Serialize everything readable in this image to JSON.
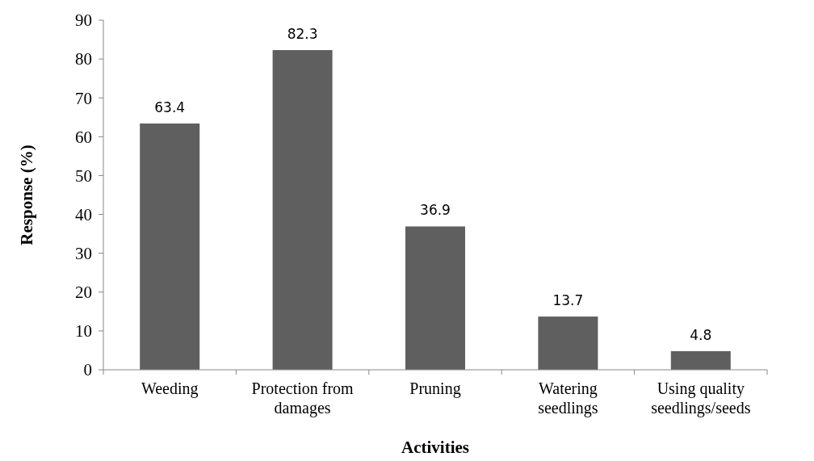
{
  "chart_data": {
    "type": "bar",
    "xlabel": "Activities",
    "ylabel": "Response (%)",
    "categories": [
      "Weeding",
      "Protection from damages",
      "Pruning",
      "Watering seedlings",
      "Using quality seedlings/seeds"
    ],
    "values": [
      63.4,
      82.3,
      36.9,
      13.7,
      4.8
    ],
    "color": "#5f5f5f",
    "ylim": [
      0,
      90
    ],
    "yticks": [
      0,
      10,
      20,
      30,
      40,
      50,
      60,
      70,
      80,
      90
    ],
    "data_labels": true,
    "grid": false
  }
}
